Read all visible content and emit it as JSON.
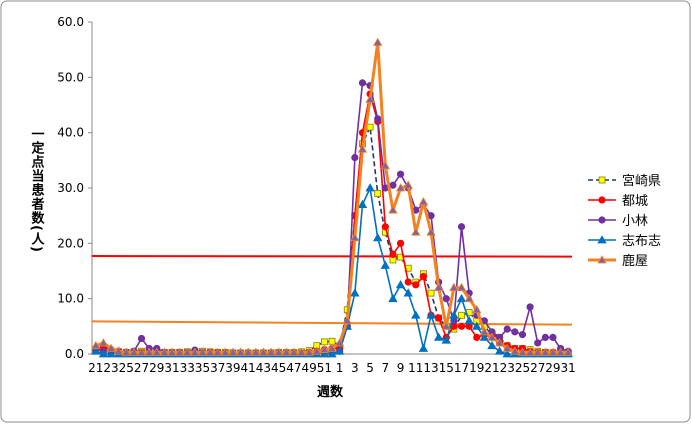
{
  "chart_data": {
    "type": "line",
    "y_label": "一定点当患者数(人)",
    "x_label": "週数",
    "categories": [
      "21",
      null,
      "23",
      null,
      "25",
      null,
      "27",
      null,
      "29",
      null,
      "31",
      null,
      "33",
      null,
      "35",
      null,
      "37",
      null,
      "39",
      null,
      "41",
      null,
      "43",
      null,
      "45",
      null,
      "47",
      null,
      "49",
      null,
      "51",
      null,
      "1",
      null,
      "3",
      null,
      "5",
      null,
      "7",
      null,
      "9",
      null,
      "11",
      null,
      "13",
      null,
      "15",
      null,
      "17",
      null,
      "19",
      null,
      "21",
      null,
      "23",
      null,
      "25",
      null,
      "27",
      null,
      "29",
      null,
      "31"
    ],
    "ylim": [
      0,
      60
    ],
    "yticks": [
      {
        "value": 0,
        "label": "0.0"
      },
      {
        "value": 10,
        "label": "10.0"
      },
      {
        "value": 20,
        "label": "20.0"
      },
      {
        "value": 30,
        "label": "30.0"
      },
      {
        "value": 40,
        "label": "40.0"
      },
      {
        "value": 50,
        "label": "50.0"
      },
      {
        "value": 60,
        "label": "60.0"
      }
    ],
    "legend": "right",
    "reference_lines": [
      {
        "color": "#ff0000",
        "values": [
          17.7,
          17.6
        ]
      },
      {
        "color": "#f58220",
        "values": [
          5.9,
          5.3
        ]
      }
    ],
    "series": [
      {
        "name": "宮崎県",
        "color": "#1f3864",
        "marker": "square",
        "marker_fill": "#ffff00",
        "dashed": true,
        "values": [
          0.8,
          0.6,
          0.5,
          0.4,
          0.3,
          0.4,
          0.5,
          0.4,
          0.3,
          0.3,
          0.3,
          0.3,
          0.4,
          0.4,
          0.5,
          0.4,
          0.3,
          0.3,
          0.2,
          0.2,
          0.2,
          0.2,
          0.2,
          0.2,
          0.3,
          0.3,
          0.3,
          0.4,
          0.6,
          1.5,
          2.2,
          2.3,
          1.5,
          8,
          25,
          38,
          41,
          29,
          22,
          17,
          17.5,
          15.5,
          13,
          14.5,
          11,
          6.5,
          5,
          4.5,
          7,
          7.5,
          6,
          5,
          3.5,
          3,
          1.5,
          1,
          1,
          0.8,
          0.5,
          0.3,
          0.2,
          0.2,
          0.2
        ]
      },
      {
        "name": "都城",
        "color": "#ff0000",
        "marker": "circle",
        "marker_fill": "#ff0000",
        "values": [
          1,
          1.2,
          0.8,
          0.5,
          0.3,
          0.3,
          0.3,
          0.2,
          0.2,
          0.2,
          0.2,
          0.2,
          0.2,
          0.3,
          0.3,
          0.3,
          0.3,
          0.2,
          0.2,
          0.2,
          0.2,
          0.2,
          0.2,
          0.2,
          0.2,
          0.2,
          0.2,
          0.2,
          0.3,
          0.5,
          0.8,
          1,
          1,
          5,
          25,
          40,
          47,
          42,
          23,
          18,
          20,
          13,
          12.5,
          14,
          7,
          6.5,
          3,
          5,
          5,
          5,
          3,
          3.5,
          3,
          2,
          1.5,
          1,
          1,
          0.5,
          0.3,
          0.3,
          0.3,
          0.3,
          0.3
        ]
      },
      {
        "name": "小林",
        "color": "#7030a0",
        "marker": "circle",
        "marker_fill": "#7030a0",
        "values": [
          1,
          0.5,
          0.5,
          0.3,
          0.3,
          0.5,
          2.8,
          1,
          1,
          0.3,
          0.3,
          0.3,
          0.3,
          0.7,
          0.3,
          0.2,
          0.2,
          0.2,
          0.2,
          0.2,
          0.2,
          0.2,
          0.2,
          0.2,
          0.2,
          0.2,
          0.2,
          0.2,
          0.2,
          0.2,
          0.2,
          0.2,
          0.5,
          5,
          35.5,
          49,
          48.5,
          42.5,
          30,
          30.5,
          32.5,
          30,
          26,
          27,
          25,
          13,
          10,
          6,
          23,
          11,
          7,
          6,
          4,
          3,
          4.5,
          4,
          3.5,
          8.5,
          2,
          3,
          3,
          1,
          0.5
        ]
      },
      {
        "name": "志布志",
        "color": "#0070c0",
        "marker": "triangle",
        "marker_fill": "#0070c0",
        "values": [
          0.5,
          0,
          0,
          0,
          0,
          0,
          0,
          0,
          0,
          0,
          0,
          0,
          0,
          0,
          0,
          0,
          0,
          0,
          0,
          0,
          0,
          0,
          0,
          0,
          0,
          0,
          0,
          0,
          0,
          0,
          0,
          0,
          0.5,
          5,
          11,
          27,
          30,
          21,
          16,
          10,
          12.5,
          11,
          7,
          1,
          7,
          3,
          2.5,
          7,
          10,
          6,
          5,
          3,
          1.5,
          0.5,
          0,
          0,
          0,
          0,
          0,
          0,
          0,
          0,
          0
        ]
      },
      {
        "name": "鹿屋",
        "color": "#f58220",
        "marker": "triangle",
        "marker_fill": "#8064a2",
        "width": 3,
        "values": [
          1.5,
          2,
          1,
          0.5,
          0.3,
          0.3,
          0.3,
          0.3,
          0.3,
          0.3,
          0.3,
          0.3,
          0.3,
          0.3,
          0.3,
          0.3,
          0.3,
          0.3,
          0.3,
          0.3,
          0.3,
          0.3,
          0.3,
          0.3,
          0.3,
          0.3,
          0.3,
          0.3,
          0.3,
          0.5,
          0.8,
          1,
          2,
          6,
          21,
          37,
          46,
          56.3,
          34,
          26,
          30,
          30.5,
          22,
          27.5,
          22,
          12,
          5,
          12,
          12,
          10,
          8,
          4,
          3,
          2,
          1,
          0.5,
          0.3,
          0.3,
          0.3,
          0.3,
          0.3,
          0.3,
          0.3
        ]
      }
    ]
  }
}
